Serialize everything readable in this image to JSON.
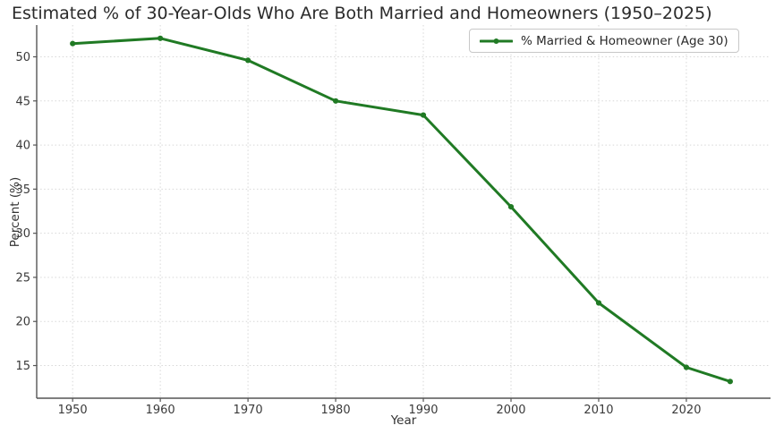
{
  "chart_data": {
    "type": "line",
    "title": "Estimated % of 30-Year-Olds Who Are Both Married and Homeowners (1950–2025)",
    "xlabel": "Year",
    "ylabel": "Percent (%)",
    "x": [
      1950,
      1960,
      1970,
      1980,
      1990,
      2000,
      2010,
      2020,
      2025
    ],
    "series": [
      {
        "name": "% Married & Homeowner (Age 30)",
        "values": [
          51.5,
          52.1,
          49.6,
          45.0,
          43.4,
          33.0,
          22.1,
          14.8,
          13.2
        ]
      }
    ],
    "x_ticks": [
      "1950",
      "1960",
      "1970",
      "1980",
      "1990",
      "2000",
      "2010",
      "2020"
    ],
    "y_ticks": [
      "15",
      "20",
      "25",
      "30",
      "35",
      "40",
      "45",
      "50"
    ],
    "xlim": [
      1945.9,
      2029.6
    ],
    "ylim": [
      11.3,
      53.6
    ],
    "grid": "dotted",
    "legend_position": "upper right",
    "colors": {
      "line": "#207a24",
      "grid": "#d7d7d7",
      "spine": "#555555",
      "tick_text": "#3a3a3a",
      "background": "#ffffff"
    }
  }
}
